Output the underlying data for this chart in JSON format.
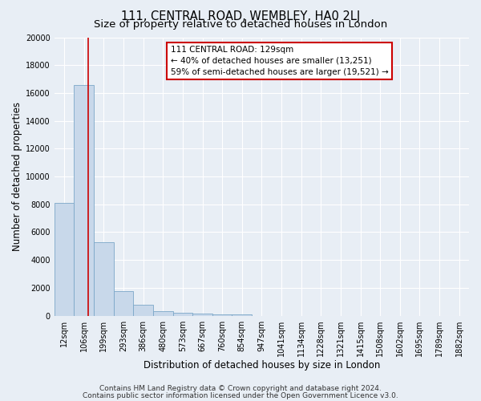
{
  "title": "111, CENTRAL ROAD, WEMBLEY, HA0 2LJ",
  "subtitle": "Size of property relative to detached houses in London",
  "xlabel": "Distribution of detached houses by size in London",
  "ylabel": "Number of detached properties",
  "bin_labels": [
    "12sqm",
    "106sqm",
    "199sqm",
    "293sqm",
    "386sqm",
    "480sqm",
    "573sqm",
    "667sqm",
    "760sqm",
    "854sqm",
    "947sqm",
    "1041sqm",
    "1134sqm",
    "1228sqm",
    "1321sqm",
    "1415sqm",
    "1508sqm",
    "1602sqm",
    "1695sqm",
    "1789sqm",
    "1882sqm"
  ],
  "bin_values": [
    8100,
    16600,
    5300,
    1750,
    800,
    300,
    200,
    150,
    100,
    75,
    0,
    0,
    0,
    0,
    0,
    0,
    0,
    0,
    0,
    0,
    0
  ],
  "bar_color": "#c8d8ea",
  "bar_edge_color": "#7ba7c8",
  "red_line_x": 1.23,
  "annotation_title": "111 CENTRAL ROAD: 129sqm",
  "annotation_line1": "← 40% of detached houses are smaller (13,251)",
  "annotation_line2": "59% of semi-detached houses are larger (19,521) →",
  "annotation_box_color": "#ffffff",
  "annotation_box_edge": "#cc0000",
  "red_line_color": "#cc0000",
  "ylim": [
    0,
    20000
  ],
  "yticks": [
    0,
    2000,
    4000,
    6000,
    8000,
    10000,
    12000,
    14000,
    16000,
    18000,
    20000
  ],
  "footer1": "Contains HM Land Registry data © Crown copyright and database right 2024.",
  "footer2": "Contains public sector information licensed under the Open Government Licence v3.0.",
  "bg_color": "#e8eef5",
  "plot_bg_color": "#e8eef5",
  "grid_color": "#ffffff",
  "title_fontsize": 10.5,
  "subtitle_fontsize": 9.5,
  "axis_label_fontsize": 8.5,
  "tick_fontsize": 7,
  "ann_fontsize": 7.5,
  "footer_fontsize": 6.5
}
